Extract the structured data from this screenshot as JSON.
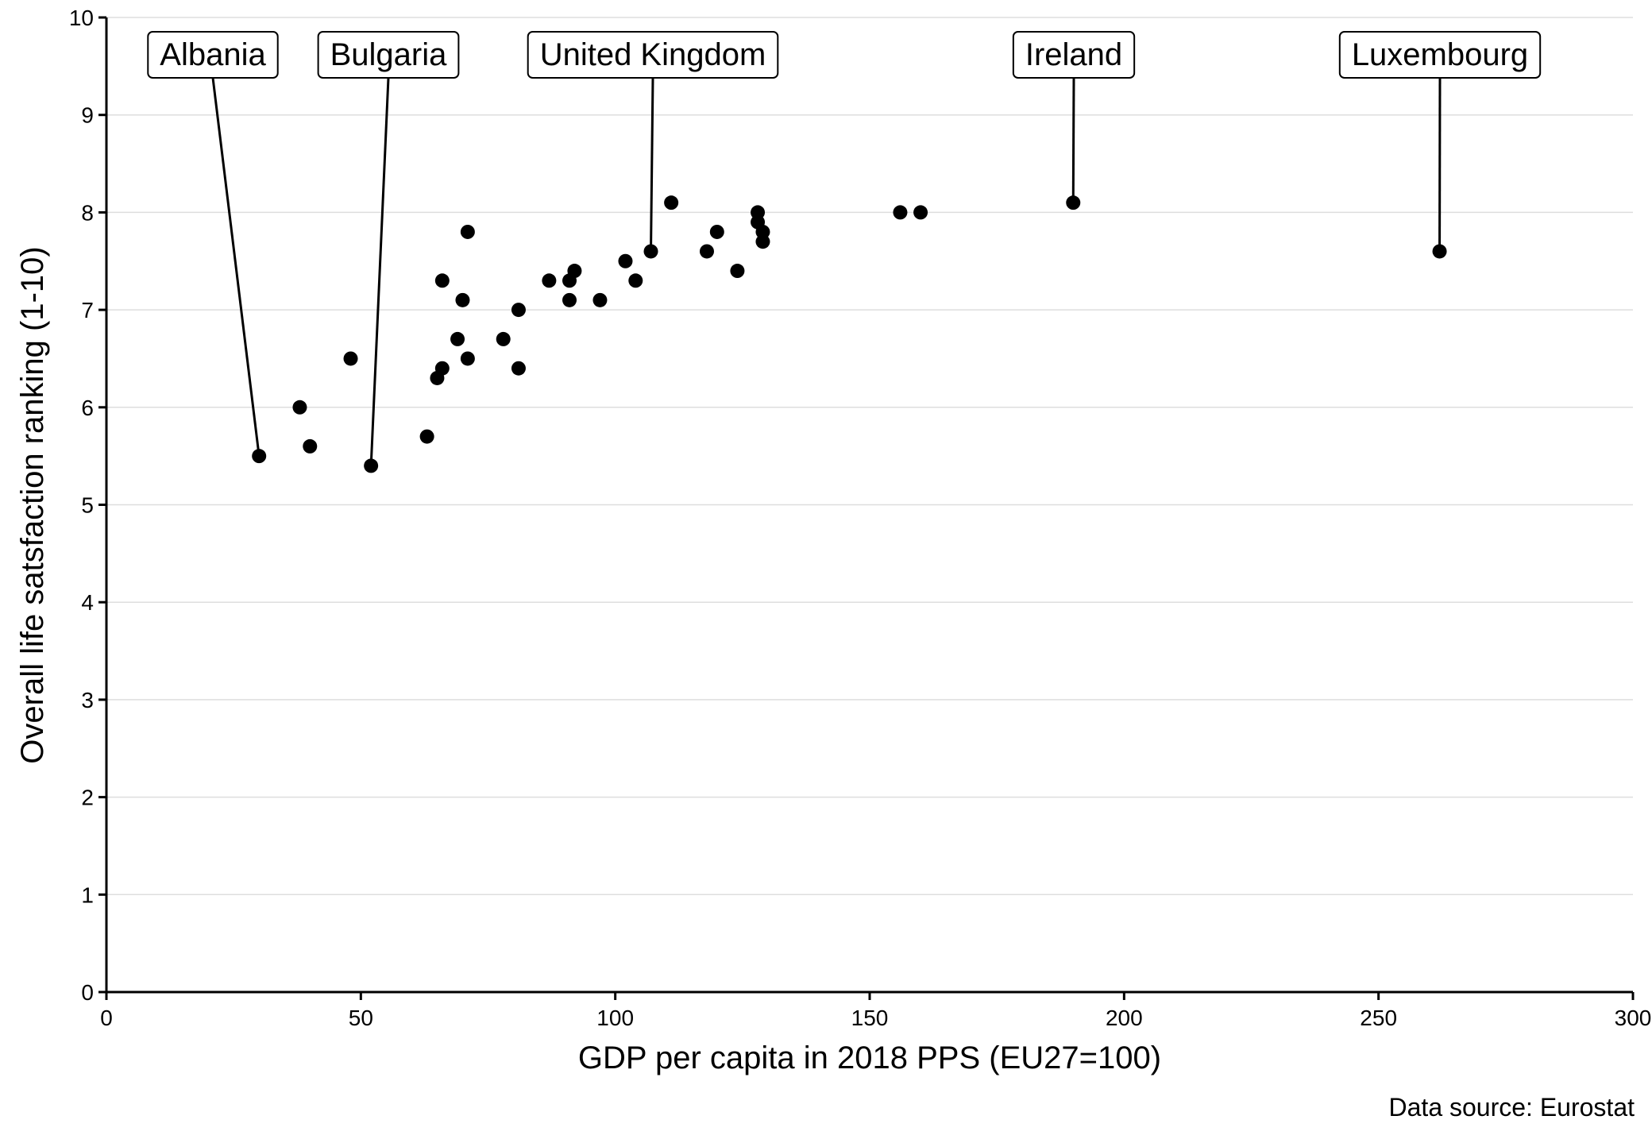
{
  "chart_data": {
    "type": "scatter",
    "xlabel": "GDP per capita in 2018 PPS (EU27=100)",
    "ylabel": "Overall life satsfaction ranking (1-10)",
    "caption": "Data source: Eurostat",
    "xlim": [
      0,
      300
    ],
    "ylim": [
      0,
      10
    ],
    "xticks": [
      "0",
      "50",
      "100",
      "150",
      "200",
      "250",
      "300"
    ],
    "yticks": [
      "0",
      "1",
      "2",
      "3",
      "4",
      "5",
      "6",
      "7",
      "8",
      "9",
      "10"
    ],
    "grid": "horizontal",
    "points": [
      {
        "x": 30,
        "y": 5.5
      },
      {
        "x": 38,
        "y": 6.0
      },
      {
        "x": 40,
        "y": 5.6
      },
      {
        "x": 48,
        "y": 6.5
      },
      {
        "x": 52,
        "y": 5.4
      },
      {
        "x": 63,
        "y": 5.7
      },
      {
        "x": 65,
        "y": 6.3
      },
      {
        "x": 66,
        "y": 6.4
      },
      {
        "x": 66,
        "y": 7.3
      },
      {
        "x": 69,
        "y": 6.7
      },
      {
        "x": 70,
        "y": 7.1
      },
      {
        "x": 71,
        "y": 6.5
      },
      {
        "x": 71,
        "y": 7.8
      },
      {
        "x": 78,
        "y": 6.7
      },
      {
        "x": 81,
        "y": 6.4
      },
      {
        "x": 81,
        "y": 7.0
      },
      {
        "x": 87,
        "y": 7.3
      },
      {
        "x": 91,
        "y": 7.1
      },
      {
        "x": 91,
        "y": 7.3
      },
      {
        "x": 92,
        "y": 7.4
      },
      {
        "x": 97,
        "y": 7.1
      },
      {
        "x": 102,
        "y": 7.5
      },
      {
        "x": 104,
        "y": 7.3
      },
      {
        "x": 107,
        "y": 7.6
      },
      {
        "x": 111,
        "y": 8.1
      },
      {
        "x": 118,
        "y": 7.6
      },
      {
        "x": 120,
        "y": 7.8
      },
      {
        "x": 124,
        "y": 7.4
      },
      {
        "x": 128,
        "y": 8.0
      },
      {
        "x": 128,
        "y": 7.9
      },
      {
        "x": 129,
        "y": 7.8
      },
      {
        "x": 129,
        "y": 7.7
      },
      {
        "x": 156,
        "y": 8.0
      },
      {
        "x": 160,
        "y": 8.0
      },
      {
        "x": 190,
        "y": 8.1
      },
      {
        "x": 262,
        "y": 7.6
      }
    ],
    "annotations": [
      {
        "text": "Albania",
        "x": 30,
        "y": 5.5
      },
      {
        "text": "Bulgaria",
        "x": 52,
        "y": 5.4
      },
      {
        "text": "United Kingdom",
        "x": 107,
        "y": 7.6
      },
      {
        "text": "Ireland",
        "x": 190,
        "y": 8.1
      },
      {
        "text": "Luxembourg",
        "x": 262,
        "y": 7.6
      }
    ]
  }
}
